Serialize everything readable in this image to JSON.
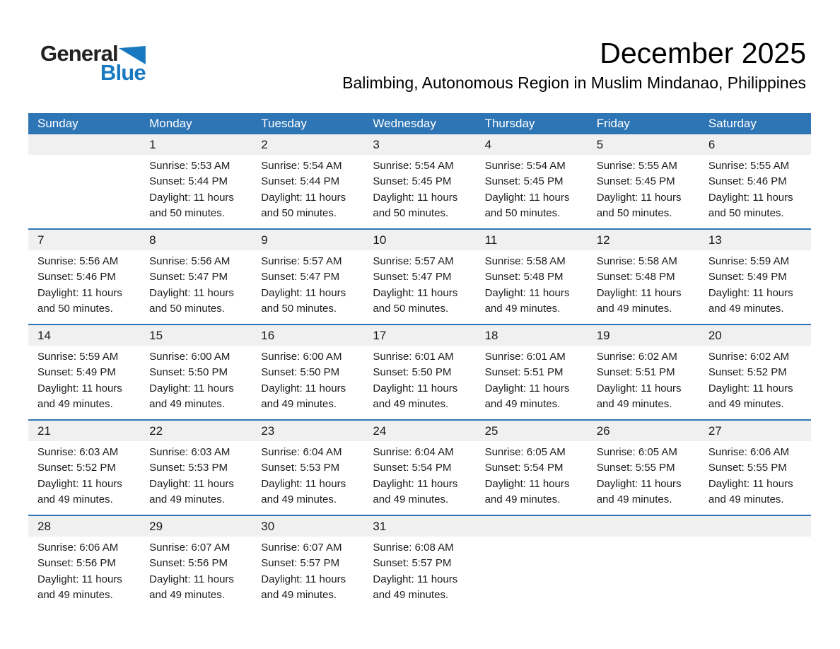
{
  "logo": {
    "general": "General",
    "blue": "Blue"
  },
  "header": {
    "month_title": "December 2025",
    "location": "Balimbing, Autonomous Region in Muslim Mindanao, Philippines"
  },
  "colors": {
    "header_blue": "#2E75B6",
    "week_separator_blue": "#2E75B6",
    "number_band_gray": "#F0F0F0",
    "logo_blue": "#1879C0",
    "logo_text_dark": "#232020"
  },
  "weekdays": [
    "Sunday",
    "Monday",
    "Tuesday",
    "Wednesday",
    "Thursday",
    "Friday",
    "Saturday"
  ],
  "weeks": [
    [
      {
        "day": "",
        "lines": []
      },
      {
        "day": "1",
        "lines": [
          "Sunrise: 5:53 AM",
          "Sunset: 5:44 PM",
          "Daylight: 11 hours",
          "and 50 minutes."
        ]
      },
      {
        "day": "2",
        "lines": [
          "Sunrise: 5:54 AM",
          "Sunset: 5:44 PM",
          "Daylight: 11 hours",
          "and 50 minutes."
        ]
      },
      {
        "day": "3",
        "lines": [
          "Sunrise: 5:54 AM",
          "Sunset: 5:45 PM",
          "Daylight: 11 hours",
          "and 50 minutes."
        ]
      },
      {
        "day": "4",
        "lines": [
          "Sunrise: 5:54 AM",
          "Sunset: 5:45 PM",
          "Daylight: 11 hours",
          "and 50 minutes."
        ]
      },
      {
        "day": "5",
        "lines": [
          "Sunrise: 5:55 AM",
          "Sunset: 5:45 PM",
          "Daylight: 11 hours",
          "and 50 minutes."
        ]
      },
      {
        "day": "6",
        "lines": [
          "Sunrise: 5:55 AM",
          "Sunset: 5:46 PM",
          "Daylight: 11 hours",
          "and 50 minutes."
        ]
      }
    ],
    [
      {
        "day": "7",
        "lines": [
          "Sunrise: 5:56 AM",
          "Sunset: 5:46 PM",
          "Daylight: 11 hours",
          "and 50 minutes."
        ]
      },
      {
        "day": "8",
        "lines": [
          "Sunrise: 5:56 AM",
          "Sunset: 5:47 PM",
          "Daylight: 11 hours",
          "and 50 minutes."
        ]
      },
      {
        "day": "9",
        "lines": [
          "Sunrise: 5:57 AM",
          "Sunset: 5:47 PM",
          "Daylight: 11 hours",
          "and 50 minutes."
        ]
      },
      {
        "day": "10",
        "lines": [
          "Sunrise: 5:57 AM",
          "Sunset: 5:47 PM",
          "Daylight: 11 hours",
          "and 50 minutes."
        ]
      },
      {
        "day": "11",
        "lines": [
          "Sunrise: 5:58 AM",
          "Sunset: 5:48 PM",
          "Daylight: 11 hours",
          "and 49 minutes."
        ]
      },
      {
        "day": "12",
        "lines": [
          "Sunrise: 5:58 AM",
          "Sunset: 5:48 PM",
          "Daylight: 11 hours",
          "and 49 minutes."
        ]
      },
      {
        "day": "13",
        "lines": [
          "Sunrise: 5:59 AM",
          "Sunset: 5:49 PM",
          "Daylight: 11 hours",
          "and 49 minutes."
        ]
      }
    ],
    [
      {
        "day": "14",
        "lines": [
          "Sunrise: 5:59 AM",
          "Sunset: 5:49 PM",
          "Daylight: 11 hours",
          "and 49 minutes."
        ]
      },
      {
        "day": "15",
        "lines": [
          "Sunrise: 6:00 AM",
          "Sunset: 5:50 PM",
          "Daylight: 11 hours",
          "and 49 minutes."
        ]
      },
      {
        "day": "16",
        "lines": [
          "Sunrise: 6:00 AM",
          "Sunset: 5:50 PM",
          "Daylight: 11 hours",
          "and 49 minutes."
        ]
      },
      {
        "day": "17",
        "lines": [
          "Sunrise: 6:01 AM",
          "Sunset: 5:50 PM",
          "Daylight: 11 hours",
          "and 49 minutes."
        ]
      },
      {
        "day": "18",
        "lines": [
          "Sunrise: 6:01 AM",
          "Sunset: 5:51 PM",
          "Daylight: 11 hours",
          "and 49 minutes."
        ]
      },
      {
        "day": "19",
        "lines": [
          "Sunrise: 6:02 AM",
          "Sunset: 5:51 PM",
          "Daylight: 11 hours",
          "and 49 minutes."
        ]
      },
      {
        "day": "20",
        "lines": [
          "Sunrise: 6:02 AM",
          "Sunset: 5:52 PM",
          "Daylight: 11 hours",
          "and 49 minutes."
        ]
      }
    ],
    [
      {
        "day": "21",
        "lines": [
          "Sunrise: 6:03 AM",
          "Sunset: 5:52 PM",
          "Daylight: 11 hours",
          "and 49 minutes."
        ]
      },
      {
        "day": "22",
        "lines": [
          "Sunrise: 6:03 AM",
          "Sunset: 5:53 PM",
          "Daylight: 11 hours",
          "and 49 minutes."
        ]
      },
      {
        "day": "23",
        "lines": [
          "Sunrise: 6:04 AM",
          "Sunset: 5:53 PM",
          "Daylight: 11 hours",
          "and 49 minutes."
        ]
      },
      {
        "day": "24",
        "lines": [
          "Sunrise: 6:04 AM",
          "Sunset: 5:54 PM",
          "Daylight: 11 hours",
          "and 49 minutes."
        ]
      },
      {
        "day": "25",
        "lines": [
          "Sunrise: 6:05 AM",
          "Sunset: 5:54 PM",
          "Daylight: 11 hours",
          "and 49 minutes."
        ]
      },
      {
        "day": "26",
        "lines": [
          "Sunrise: 6:05 AM",
          "Sunset: 5:55 PM",
          "Daylight: 11 hours",
          "and 49 minutes."
        ]
      },
      {
        "day": "27",
        "lines": [
          "Sunrise: 6:06 AM",
          "Sunset: 5:55 PM",
          "Daylight: 11 hours",
          "and 49 minutes."
        ]
      }
    ],
    [
      {
        "day": "28",
        "lines": [
          "Sunrise: 6:06 AM",
          "Sunset: 5:56 PM",
          "Daylight: 11 hours",
          "and 49 minutes."
        ]
      },
      {
        "day": "29",
        "lines": [
          "Sunrise: 6:07 AM",
          "Sunset: 5:56 PM",
          "Daylight: 11 hours",
          "and 49 minutes."
        ]
      },
      {
        "day": "30",
        "lines": [
          "Sunrise: 6:07 AM",
          "Sunset: 5:57 PM",
          "Daylight: 11 hours",
          "and 49 minutes."
        ]
      },
      {
        "day": "31",
        "lines": [
          "Sunrise: 6:08 AM",
          "Sunset: 5:57 PM",
          "Daylight: 11 hours",
          "and 49 minutes."
        ]
      },
      {
        "day": "",
        "lines": []
      },
      {
        "day": "",
        "lines": []
      },
      {
        "day": "",
        "lines": []
      }
    ]
  ]
}
